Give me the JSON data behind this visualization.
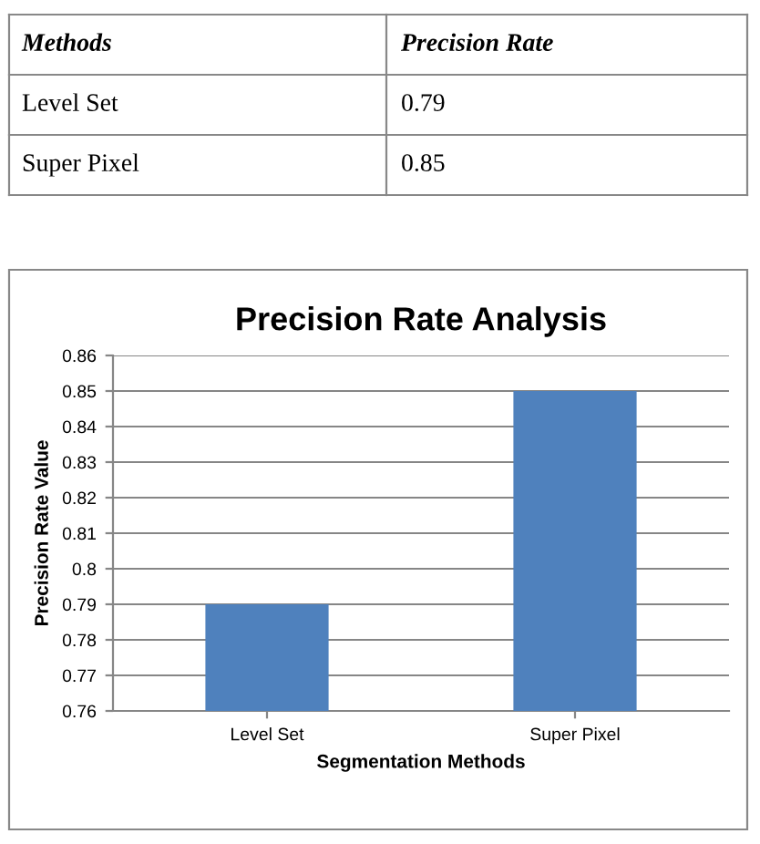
{
  "chart_data": {
    "type": "bar",
    "title": "Precision Rate Analysis",
    "xlabel": "Segmentation Methods",
    "ylabel": "Precision Rate Value",
    "categories": [
      "Level Set",
      "Super Pixel"
    ],
    "values": [
      0.79,
      0.85
    ],
    "color": "#4f81bd",
    "ylim": [
      0.76,
      0.86
    ],
    "yticks": [
      0.76,
      0.77,
      0.78,
      0.79,
      0.8,
      0.81,
      0.82,
      0.83,
      0.84,
      0.85,
      0.86
    ],
    "grid": "y",
    "annotations": [
      "Methods",
      "Precision Rate",
      "Level Set",
      "0.79",
      "Super Pixel",
      "0.85"
    ]
  }
}
